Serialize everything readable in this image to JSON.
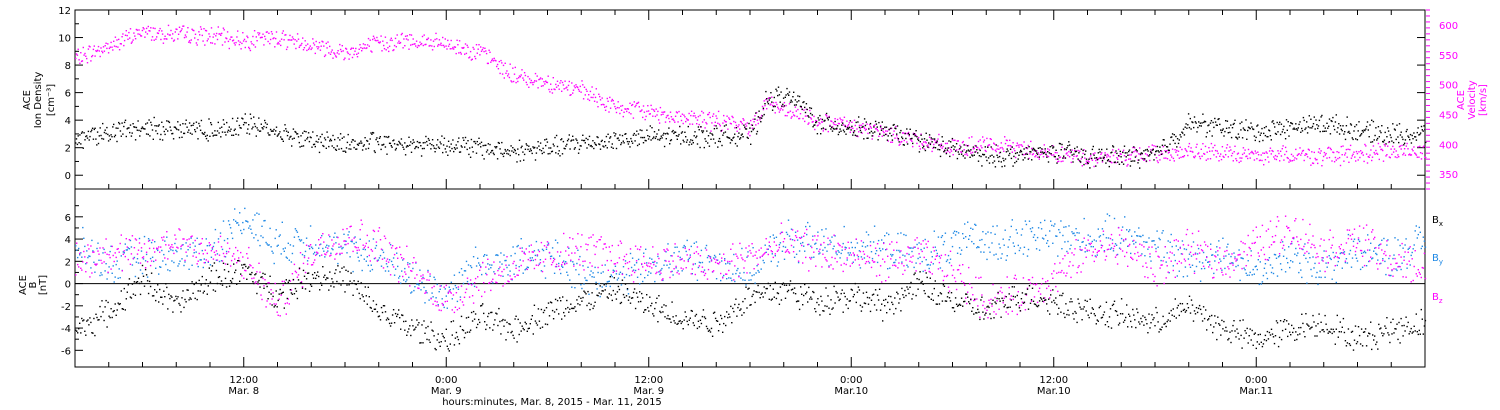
{
  "colors": {
    "density": "#000000",
    "velocity": "#ff00ff",
    "bx": "#000000",
    "by": "#1e88e5",
    "bz": "#ff00ff",
    "axis": "#000000"
  },
  "chart_data": [
    {
      "type": "scatter",
      "panel": "top",
      "ylabel_lines": [
        "ACE",
        "Ion Density"
      ],
      "yunit": "[cm⁻³]",
      "ylim": [
        -1,
        12
      ],
      "yticks": [
        "0",
        "2",
        "4",
        "6",
        "8",
        "10",
        "12"
      ],
      "right_ylabel_lines": [
        "ACE",
        "Velocity"
      ],
      "right_yunit": "[km/s]",
      "right_ylim": [
        325,
        625
      ],
      "right_yticks": [
        "350",
        "400",
        "450",
        "500",
        "550",
        "600"
      ],
      "xlim_hours": [
        2,
        82
      ],
      "series": [
        {
          "axis": "left",
          "x": [
            2,
            4,
            6,
            8,
            10,
            12,
            14,
            16,
            18,
            20,
            22,
            24,
            26,
            28,
            30,
            32,
            34,
            36,
            38,
            40,
            42,
            43,
            44,
            45,
            46,
            48,
            50,
            52,
            54,
            56,
            58,
            60,
            62,
            64,
            66,
            68,
            70,
            72,
            74,
            76,
            78,
            80,
            82
          ],
          "values": [
            2.7,
            3.2,
            3.4,
            3.5,
            3.3,
            3.8,
            3.2,
            2.6,
            2.3,
            2.4,
            2.3,
            2.3,
            2.0,
            1.8,
            2.0,
            2.4,
            2.6,
            2.8,
            2.9,
            2.9,
            3.0,
            5.5,
            5.8,
            5.2,
            3.8,
            3.5,
            3.2,
            2.6,
            1.9,
            1.4,
            1.5,
            1.8,
            1.4,
            1.4,
            1.5,
            3.8,
            3.5,
            3.2,
            3.5,
            3.8,
            3.3,
            3.0,
            3.0
          ]
        },
        {
          "axis": "right",
          "x": [
            2,
            4,
            6,
            8,
            10,
            12,
            14,
            16,
            18,
            20,
            22,
            24,
            26,
            28,
            30,
            32,
            34,
            36,
            38,
            40,
            42,
            43,
            44,
            45,
            46,
            48,
            50,
            52,
            54,
            56,
            58,
            60,
            62,
            64,
            66,
            68,
            70,
            72,
            74,
            76,
            78,
            80,
            82
          ],
          "values": [
            545,
            565,
            590,
            585,
            582,
            575,
            580,
            568,
            555,
            570,
            575,
            568,
            555,
            515,
            505,
            490,
            462,
            455,
            445,
            440,
            430,
            475,
            455,
            450,
            440,
            430,
            420,
            408,
            395,
            398,
            395,
            385,
            378,
            380,
            385,
            388,
            385,
            382,
            385,
            380,
            385,
            388,
            392
          ]
        }
      ]
    },
    {
      "type": "scatter",
      "panel": "bottom",
      "ylabel_lines": [
        "ACE",
        "B"
      ],
      "yunit": "[nT]",
      "ylim": [
        -7.5,
        8.5
      ],
      "yticks": [
        "-6",
        "-4",
        "-2",
        "0",
        "2",
        "4",
        "6"
      ],
      "xlim_hours": [
        2,
        82
      ],
      "series": [
        {
          "name": "Bx",
          "x": [
            2,
            4,
            6,
            8,
            10,
            12,
            14,
            16,
            18,
            20,
            22,
            24,
            26,
            28,
            30,
            32,
            34,
            36,
            38,
            40,
            42,
            44,
            46,
            48,
            50,
            52,
            54,
            56,
            58,
            60,
            62,
            64,
            66,
            68,
            70,
            72,
            74,
            76,
            78,
            80,
            82
          ],
          "values": [
            -4.2,
            -2.5,
            0.5,
            -2.0,
            0.5,
            1.2,
            -1.0,
            0.8,
            0.5,
            -2.5,
            -4.0,
            -5.0,
            -3.0,
            -4.0,
            -2.5,
            -1.5,
            -0.5,
            -2.0,
            -3.0,
            -3.5,
            -1.0,
            -0.5,
            -1.5,
            -1.0,
            -2.0,
            0.0,
            -1.5,
            -2.5,
            -1.0,
            -1.5,
            -2.5,
            -2.8,
            -3.5,
            -2.0,
            -4.0,
            -5.0,
            -4.0,
            -3.5,
            -5.0,
            -4.0,
            -3.5
          ]
        },
        {
          "name": "By",
          "x": [
            2,
            4,
            6,
            8,
            10,
            12,
            14,
            16,
            18,
            20,
            22,
            24,
            26,
            28,
            30,
            32,
            34,
            36,
            38,
            40,
            42,
            44,
            46,
            48,
            50,
            52,
            54,
            56,
            58,
            60,
            62,
            64,
            66,
            68,
            70,
            72,
            74,
            76,
            78,
            80,
            82
          ],
          "values": [
            3.5,
            1.5,
            2.5,
            2.5,
            3.0,
            6.0,
            3.5,
            4.0,
            3.0,
            2.5,
            0.5,
            -1.0,
            2.0,
            2.0,
            2.5,
            1.0,
            0.5,
            1.5,
            2.5,
            2.0,
            1.0,
            4.0,
            3.5,
            3.5,
            3.0,
            2.5,
            3.5,
            4.0,
            4.0,
            4.5,
            4.0,
            4.5,
            3.5,
            2.0,
            3.0,
            1.0,
            2.5,
            1.5,
            3.0,
            2.5,
            4.0
          ]
        },
        {
          "name": "Bz",
          "x": [
            2,
            4,
            6,
            8,
            10,
            12,
            14,
            16,
            18,
            20,
            22,
            24,
            26,
            28,
            30,
            32,
            34,
            36,
            38,
            40,
            42,
            44,
            46,
            48,
            50,
            52,
            54,
            56,
            58,
            60,
            62,
            64,
            66,
            68,
            70,
            72,
            74,
            76,
            78,
            80,
            82
          ],
          "values": [
            2.0,
            3.0,
            2.5,
            4.0,
            3.0,
            2.0,
            -2.0,
            3.0,
            4.5,
            3.5,
            1.0,
            -1.5,
            0.5,
            1.5,
            2.5,
            3.0,
            2.5,
            2.0,
            2.0,
            1.5,
            2.5,
            3.5,
            3.0,
            2.5,
            2.0,
            2.5,
            1.0,
            -1.5,
            -1.0,
            0.5,
            3.0,
            3.5,
            1.5,
            3.0,
            2.0,
            3.5,
            5.0,
            3.0,
            4.0,
            2.0,
            1.5
          ]
        }
      ],
      "legend": [
        "B",
        "B",
        "B"
      ],
      "legend_subscripts": [
        "x",
        "y",
        "z"
      ]
    }
  ],
  "x_axis": {
    "tick_hours": [
      12,
      24,
      36,
      48,
      60,
      72
    ],
    "tick_labels": [
      [
        "12:00",
        "Mar. 8"
      ],
      [
        "0:00",
        "Mar. 9"
      ],
      [
        "12:00",
        "Mar. 9"
      ],
      [
        "0:00",
        "Mar.10"
      ],
      [
        "12:00",
        "Mar.10"
      ],
      [
        "0:00",
        "Mar.11"
      ]
    ],
    "xlabel": "hours:minutes, Mar.  8, 2015 - Mar. 11, 2015"
  }
}
